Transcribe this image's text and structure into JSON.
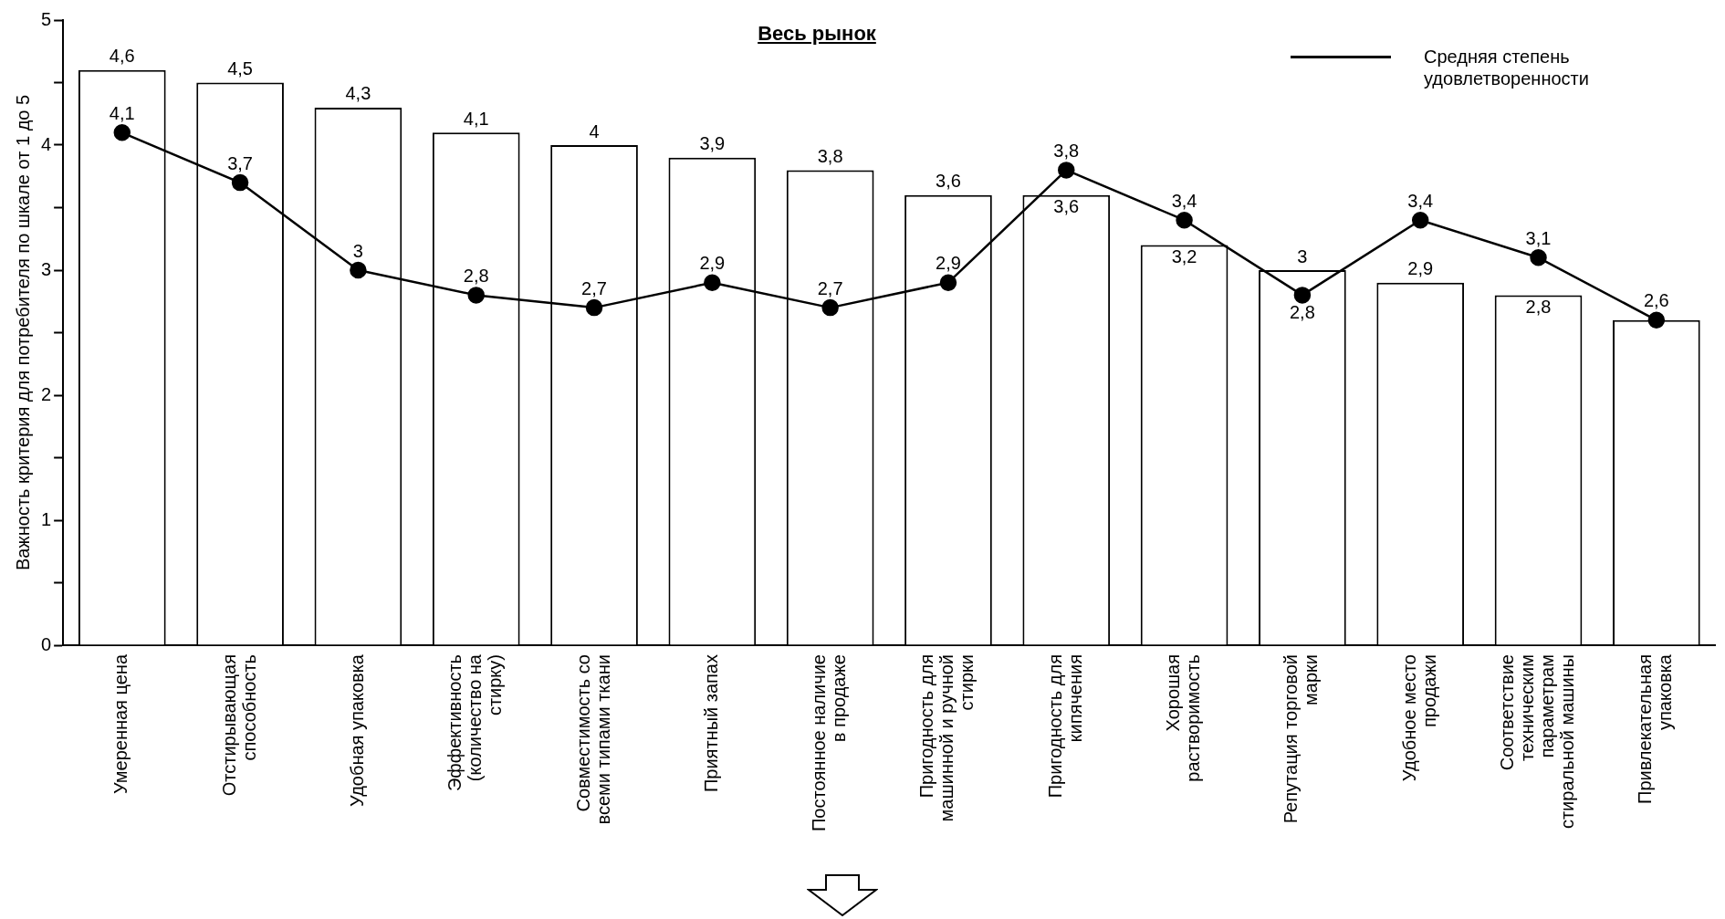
{
  "chart_data": {
    "type": "bar",
    "title": "Весь рынок",
    "ylabel": "Важность критерия для потребителя по шкале от 1 до 5",
    "categories": [
      "Умеренная цена",
      "Отстирывающая способность",
      "Удобная упаковка",
      "Эффективность (количество на стирку)",
      "Совместимость со всеми типами ткани",
      "Приятный запах",
      "Постоянное наличие в продаже",
      "Пригодность для машинной и ручной стирки",
      "Пригодность для кипячения",
      "Хорошая растворимость",
      "Репутация торговой марки",
      "Удобное место продажи",
      "Соответствие техническим параметрам стиральной машины",
      "Привлекательная упаковка"
    ],
    "series": [
      {
        "color": "#ffffff",
        "values": [
          4.6,
          4.5,
          4.3,
          4.1,
          4,
          3.9,
          3.8,
          3.6,
          3.6,
          3.2,
          3,
          2.9,
          2.8,
          2.6
        ],
        "value_labels": [
          "4,6",
          "4,5",
          "4,3",
          "4,1",
          "4",
          "3,9",
          "3,8",
          "3,6",
          "3,6",
          "3,2",
          "3",
          "2,9",
          "2,8",
          null
        ]
      },
      {
        "type": "line",
        "name": "Средняя степень удовлетворенности",
        "color": "#000000",
        "values": [
          4.1,
          3.7,
          3,
          2.8,
          2.7,
          2.9,
          2.7,
          2.9,
          3.8,
          3.4,
          2.8,
          3.4,
          3.1,
          2.6
        ],
        "value_labels": [
          "4,1",
          "3,7",
          "3",
          "2,8",
          "2,7",
          "2,9",
          "2,7",
          "2,9",
          "3,8",
          "3,4",
          "2,8",
          "3,4",
          "3,1",
          "2,6"
        ]
      }
    ],
    "ylim": [
      0,
      5
    ],
    "yticks": [
      0,
      {
        "value": 0.5,
        "label": null
      },
      1,
      {
        "value": 1.5,
        "label": null
      },
      2,
      {
        "value": 2.5,
        "label": null
      },
      3,
      {
        "value": 3.5,
        "label": null
      },
      4,
      {
        "value": 4.5,
        "label": null
      },
      5
    ],
    "grid": false,
    "legend": "top right",
    "marker": "circle",
    "line_style": "solid"
  }
}
